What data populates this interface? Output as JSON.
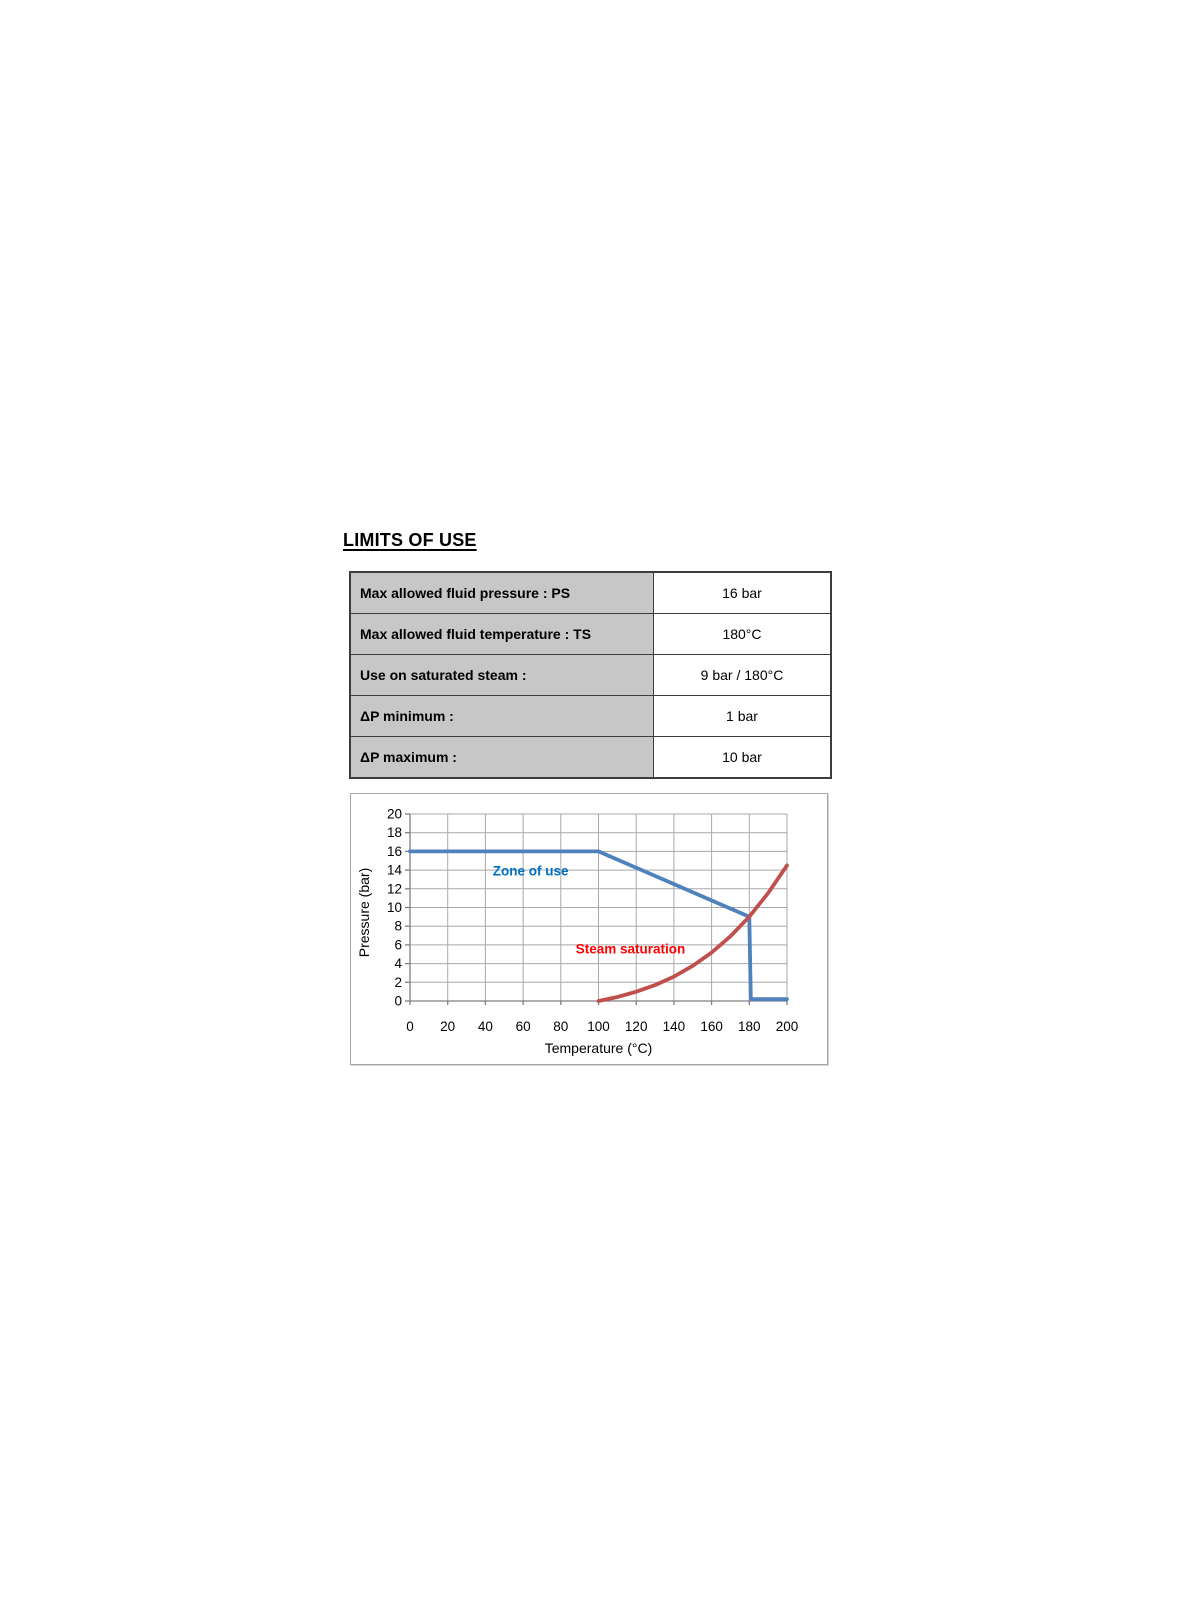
{
  "page": {
    "heading": "LIMITS OF USE"
  },
  "table": {
    "header_bg": "#C7C7C7",
    "rows": [
      {
        "label": "Max allowed fluid pressure : PS",
        "value": "16 bar"
      },
      {
        "label": "Max allowed fluid temperature : TS",
        "value": "180°C"
      },
      {
        "label": "Use on saturated steam :",
        "value": "9 bar / 180°C"
      },
      {
        "label": "ΔP minimum :",
        "value": "1 bar"
      },
      {
        "label": "ΔP maximum :",
        "value": "10 bar"
      }
    ]
  },
  "chart_data": {
    "type": "line",
    "title": "",
    "xlabel": "Temperature (°C)",
    "ylabel": "Pressure (bar)",
    "xlim": [
      0,
      200
    ],
    "ylim": [
      0,
      20
    ],
    "xticks": [
      0,
      20,
      40,
      60,
      80,
      100,
      120,
      140,
      160,
      180,
      200
    ],
    "yticks": [
      0,
      2,
      4,
      6,
      8,
      10,
      12,
      14,
      16,
      18,
      20
    ],
    "grid": true,
    "legend_position": "inline-labels",
    "series": [
      {
        "name": "Zone of use",
        "color": "#4F81BD",
        "label_color": "#0070C0",
        "label_pos": [
          64,
          13.4
        ],
        "points": [
          [
            0,
            16
          ],
          [
            100,
            16
          ],
          [
            180,
            9
          ],
          [
            180.8,
            0.2
          ],
          [
            200,
            0.2
          ]
        ]
      },
      {
        "name": "Steam saturation",
        "color": "#C0504D",
        "label_color": "#FF0000",
        "label_pos": [
          117,
          5.1
        ],
        "points": [
          [
            100,
            0
          ],
          [
            110,
            0.43
          ],
          [
            120,
            0.99
          ],
          [
            130,
            1.7
          ],
          [
            140,
            2.61
          ],
          [
            150,
            3.76
          ],
          [
            160,
            5.18
          ],
          [
            170,
            6.92
          ],
          [
            180,
            9.02
          ],
          [
            190,
            11.54
          ],
          [
            200,
            14.5
          ]
        ]
      }
    ]
  }
}
